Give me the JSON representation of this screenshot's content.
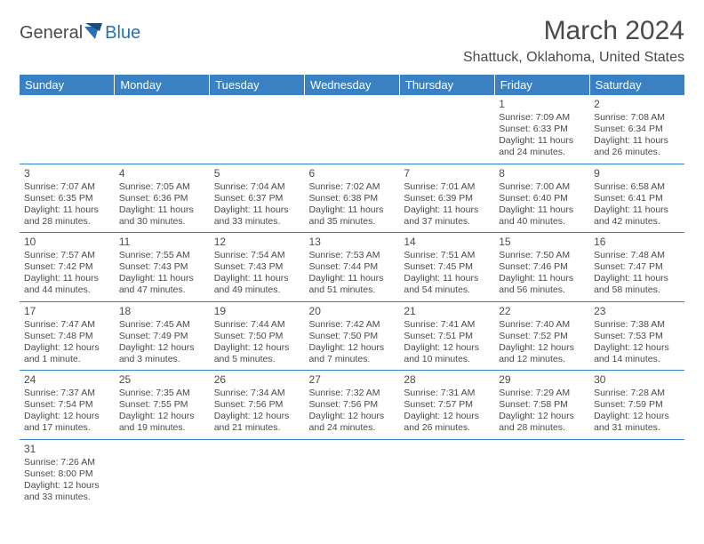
{
  "logo": {
    "general": "General",
    "blue": "Blue"
  },
  "title": "March 2024",
  "location": "Shattuck, Oklahoma, United States",
  "colors": {
    "header_bg": "#3a81c4",
    "header_text": "#ffffff",
    "text": "#4a4a4a",
    "row_border": "#3a81c4",
    "logo_blue": "#2a6fb5"
  },
  "dayHeaders": [
    "Sunday",
    "Monday",
    "Tuesday",
    "Wednesday",
    "Thursday",
    "Friday",
    "Saturday"
  ],
  "weeks": [
    [
      null,
      null,
      null,
      null,
      null,
      {
        "d": "1",
        "sr": "7:09 AM",
        "ss": "6:33 PM",
        "dl": "11 hours and 24 minutes."
      },
      {
        "d": "2",
        "sr": "7:08 AM",
        "ss": "6:34 PM",
        "dl": "11 hours and 26 minutes."
      }
    ],
    [
      {
        "d": "3",
        "sr": "7:07 AM",
        "ss": "6:35 PM",
        "dl": "11 hours and 28 minutes."
      },
      {
        "d": "4",
        "sr": "7:05 AM",
        "ss": "6:36 PM",
        "dl": "11 hours and 30 minutes."
      },
      {
        "d": "5",
        "sr": "7:04 AM",
        "ss": "6:37 PM",
        "dl": "11 hours and 33 minutes."
      },
      {
        "d": "6",
        "sr": "7:02 AM",
        "ss": "6:38 PM",
        "dl": "11 hours and 35 minutes."
      },
      {
        "d": "7",
        "sr": "7:01 AM",
        "ss": "6:39 PM",
        "dl": "11 hours and 37 minutes."
      },
      {
        "d": "8",
        "sr": "7:00 AM",
        "ss": "6:40 PM",
        "dl": "11 hours and 40 minutes."
      },
      {
        "d": "9",
        "sr": "6:58 AM",
        "ss": "6:41 PM",
        "dl": "11 hours and 42 minutes."
      }
    ],
    [
      {
        "d": "10",
        "sr": "7:57 AM",
        "ss": "7:42 PM",
        "dl": "11 hours and 44 minutes."
      },
      {
        "d": "11",
        "sr": "7:55 AM",
        "ss": "7:43 PM",
        "dl": "11 hours and 47 minutes."
      },
      {
        "d": "12",
        "sr": "7:54 AM",
        "ss": "7:43 PM",
        "dl": "11 hours and 49 minutes."
      },
      {
        "d": "13",
        "sr": "7:53 AM",
        "ss": "7:44 PM",
        "dl": "11 hours and 51 minutes."
      },
      {
        "d": "14",
        "sr": "7:51 AM",
        "ss": "7:45 PM",
        "dl": "11 hours and 54 minutes."
      },
      {
        "d": "15",
        "sr": "7:50 AM",
        "ss": "7:46 PM",
        "dl": "11 hours and 56 minutes."
      },
      {
        "d": "16",
        "sr": "7:48 AM",
        "ss": "7:47 PM",
        "dl": "11 hours and 58 minutes."
      }
    ],
    [
      {
        "d": "17",
        "sr": "7:47 AM",
        "ss": "7:48 PM",
        "dl": "12 hours and 1 minute."
      },
      {
        "d": "18",
        "sr": "7:45 AM",
        "ss": "7:49 PM",
        "dl": "12 hours and 3 minutes."
      },
      {
        "d": "19",
        "sr": "7:44 AM",
        "ss": "7:50 PM",
        "dl": "12 hours and 5 minutes."
      },
      {
        "d": "20",
        "sr": "7:42 AM",
        "ss": "7:50 PM",
        "dl": "12 hours and 7 minutes."
      },
      {
        "d": "21",
        "sr": "7:41 AM",
        "ss": "7:51 PM",
        "dl": "12 hours and 10 minutes."
      },
      {
        "d": "22",
        "sr": "7:40 AM",
        "ss": "7:52 PM",
        "dl": "12 hours and 12 minutes."
      },
      {
        "d": "23",
        "sr": "7:38 AM",
        "ss": "7:53 PM",
        "dl": "12 hours and 14 minutes."
      }
    ],
    [
      {
        "d": "24",
        "sr": "7:37 AM",
        "ss": "7:54 PM",
        "dl": "12 hours and 17 minutes."
      },
      {
        "d": "25",
        "sr": "7:35 AM",
        "ss": "7:55 PM",
        "dl": "12 hours and 19 minutes."
      },
      {
        "d": "26",
        "sr": "7:34 AM",
        "ss": "7:56 PM",
        "dl": "12 hours and 21 minutes."
      },
      {
        "d": "27",
        "sr": "7:32 AM",
        "ss": "7:56 PM",
        "dl": "12 hours and 24 minutes."
      },
      {
        "d": "28",
        "sr": "7:31 AM",
        "ss": "7:57 PM",
        "dl": "12 hours and 26 minutes."
      },
      {
        "d": "29",
        "sr": "7:29 AM",
        "ss": "7:58 PM",
        "dl": "12 hours and 28 minutes."
      },
      {
        "d": "30",
        "sr": "7:28 AM",
        "ss": "7:59 PM",
        "dl": "12 hours and 31 minutes."
      }
    ],
    [
      {
        "d": "31",
        "sr": "7:26 AM",
        "ss": "8:00 PM",
        "dl": "12 hours and 33 minutes."
      },
      null,
      null,
      null,
      null,
      null,
      null
    ]
  ],
  "labels": {
    "sunrise": "Sunrise:",
    "sunset": "Sunset:",
    "daylight": "Daylight:"
  }
}
